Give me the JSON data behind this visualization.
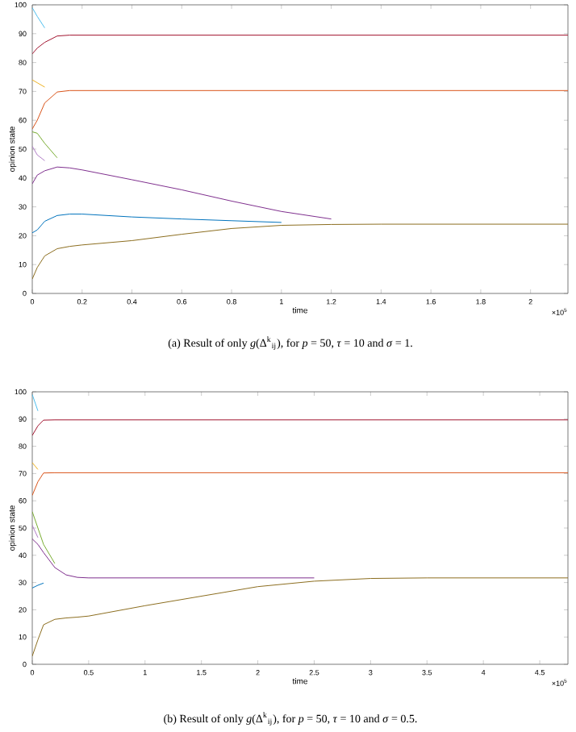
{
  "chart_data": [
    {
      "type": "line",
      "xlabel": "time",
      "ylabel": "opinion state",
      "x": [
        0,
        0.02,
        0.05,
        0.1,
        0.15,
        0.2,
        0.4,
        0.6,
        0.8,
        1.0,
        1.2,
        1.4,
        1.6,
        2.15
      ],
      "xlim": [
        0,
        2.15
      ],
      "xticks": [
        0,
        0.2,
        0.4,
        0.6,
        0.8,
        1,
        1.2,
        1.4,
        1.6,
        1.8,
        2
      ],
      "ylim": [
        0,
        100
      ],
      "yticks": [
        0,
        10,
        20,
        30,
        40,
        50,
        60,
        70,
        80,
        90,
        100
      ],
      "annotations": [
        "×10$^{5}$",
        "(a) Result of only *g*(Δ$^{k}$$_{ij}$), for *p* = 50, *τ* = 10 and *σ* = 1."
      ],
      "series": [
        {
          "color": "#4dbeee",
          "values": [
            99,
            96,
            92,
            null,
            null,
            null,
            null,
            null,
            null,
            null,
            null,
            null,
            null,
            null
          ]
        },
        {
          "color": "#a2142f",
          "values": [
            83,
            85,
            87,
            89.2,
            89.5,
            89.5,
            89.5,
            89.5,
            89.5,
            89.5,
            89.5,
            89.5,
            89.5,
            89.5
          ]
        },
        {
          "color": "#edb120",
          "values": [
            74,
            73,
            71.5,
            null,
            null,
            null,
            null,
            null,
            null,
            null,
            null,
            null,
            null,
            null
          ]
        },
        {
          "color": "#d95319",
          "values": [
            57,
            60,
            66,
            69.8,
            70.3,
            70.3,
            70.3,
            70.3,
            70.3,
            70.3,
            70.3,
            70.3,
            70.3,
            70.3
          ]
        },
        {
          "color": "#77ac30",
          "values": [
            56,
            55.5,
            52,
            47,
            null,
            null,
            null,
            null,
            null,
            null,
            null,
            null,
            null,
            null
          ]
        },
        {
          "color": "#b07cc6",
          "values": [
            51,
            48,
            46,
            null,
            null,
            null,
            null,
            null,
            null,
            null,
            null,
            null,
            null,
            null
          ]
        },
        {
          "color": "#7e2f8e",
          "values": [
            38,
            41,
            42.5,
            43.8,
            43.5,
            42.8,
            39.4,
            35.9,
            32,
            28.4,
            25.8,
            null,
            null,
            null
          ]
        },
        {
          "color": "#0072bd",
          "values": [
            21,
            22,
            25,
            27,
            27.5,
            27.5,
            26.5,
            25.8,
            25.2,
            24.6,
            null,
            null,
            null,
            null
          ]
        },
        {
          "color": "#8c6d1f",
          "values": [
            5,
            9,
            13,
            15.5,
            16.3,
            16.8,
            18.3,
            20.5,
            22.5,
            23.6,
            23.9,
            24,
            24,
            24
          ]
        }
      ]
    },
    {
      "type": "line",
      "xlabel": "time",
      "ylabel": "opinion state",
      "x": [
        0,
        0.05,
        0.1,
        0.2,
        0.3,
        0.4,
        0.5,
        1,
        1.5,
        2,
        2.5,
        3,
        3.5,
        4.75
      ],
      "xlim": [
        0,
        4.75
      ],
      "xticks": [
        0,
        0.5,
        1,
        1.5,
        2,
        2.5,
        3,
        3.5,
        4,
        4.5
      ],
      "ylim": [
        0,
        100
      ],
      "yticks": [
        0,
        10,
        20,
        30,
        40,
        50,
        60,
        70,
        80,
        90,
        100
      ],
      "annotations": [
        "×10$^{5}$",
        "(b) Result of only *g*(Δ$^{k}$$_{ij}$), for *p* = 50, *τ* = 10 and *σ* = 0.5."
      ],
      "series": [
        {
          "color": "#4dbeee",
          "values": [
            99,
            93,
            null,
            null,
            null,
            null,
            null,
            null,
            null,
            null,
            null,
            null,
            null,
            null
          ]
        },
        {
          "color": "#a2142f",
          "values": [
            84,
            87.5,
            89.6,
            89.7,
            89.7,
            89.7,
            89.7,
            89.7,
            89.7,
            89.7,
            89.7,
            89.7,
            89.7,
            89.7
          ]
        },
        {
          "color": "#edb120",
          "values": [
            74,
            71.5,
            null,
            null,
            null,
            null,
            null,
            null,
            null,
            null,
            null,
            null,
            null,
            null
          ]
        },
        {
          "color": "#d95319",
          "values": [
            62,
            67,
            70.2,
            70.3,
            70.3,
            70.3,
            70.3,
            70.3,
            70.3,
            70.3,
            70.3,
            70.3,
            70.3,
            70.3
          ]
        },
        {
          "color": "#77ac30",
          "values": [
            56,
            50,
            44,
            37,
            null,
            null,
            null,
            null,
            null,
            null,
            null,
            null,
            null,
            null
          ]
        },
        {
          "color": "#b07cc6",
          "values": [
            51,
            46.5,
            null,
            null,
            null,
            null,
            null,
            null,
            null,
            null,
            null,
            null,
            null,
            null
          ]
        },
        {
          "color": "#7e2f8e",
          "values": [
            46,
            44,
            41,
            35.5,
            32.8,
            31.9,
            31.7,
            31.7,
            31.7,
            31.7,
            31.7,
            null,
            null,
            null
          ]
        },
        {
          "color": "#0072bd",
          "values": [
            28,
            29,
            29.8,
            null,
            null,
            null,
            null,
            null,
            null,
            null,
            null,
            null,
            null,
            null
          ]
        },
        {
          "color": "#8c6d1f",
          "values": [
            3,
            9,
            14.5,
            16.5,
            17,
            17.3,
            17.7,
            21.5,
            25,
            28.5,
            30.5,
            31.5,
            31.7,
            31.7
          ]
        }
      ]
    }
  ]
}
